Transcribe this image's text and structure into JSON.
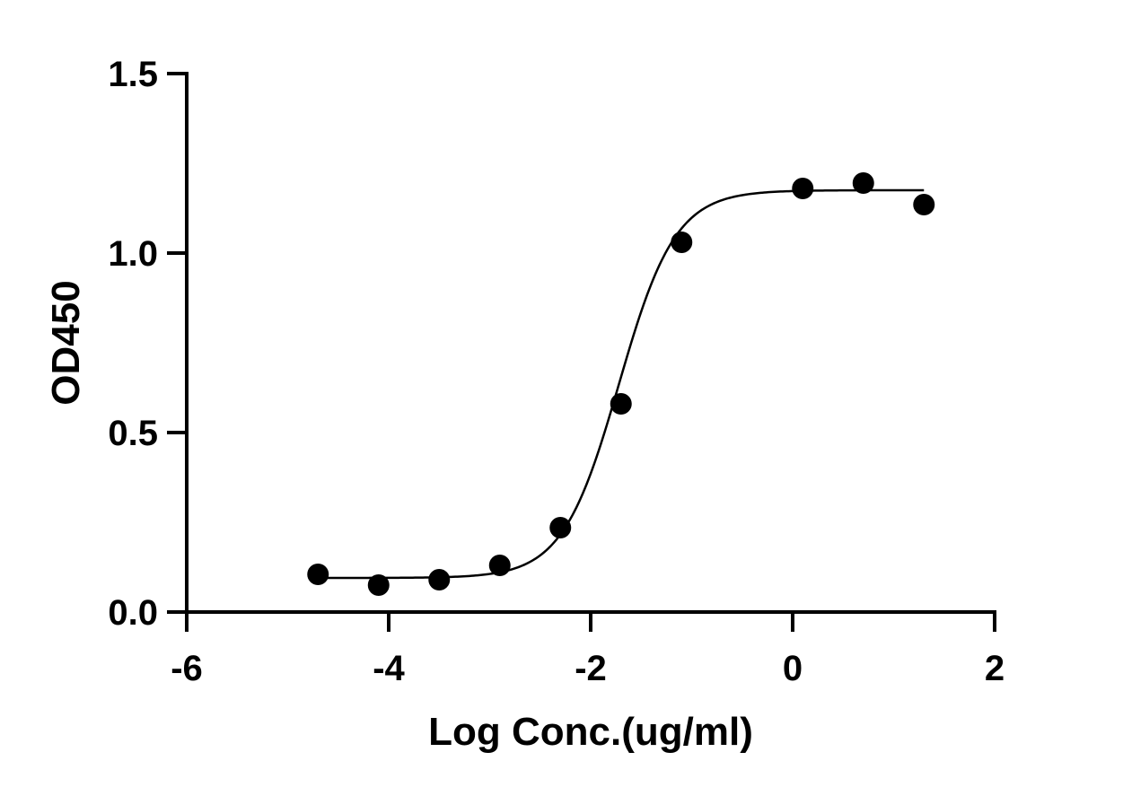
{
  "chart_data": {
    "type": "scatter",
    "title": "",
    "xlabel": "Log Conc.(ug/ml)",
    "ylabel": "OD450",
    "xlim": [
      -6,
      2
    ],
    "ylim": [
      0,
      1.5
    ],
    "x_ticks": [
      -6,
      -4,
      -2,
      0,
      2
    ],
    "x_tick_labels": [
      "-6",
      "-4",
      "-2",
      "0",
      "2"
    ],
    "y_ticks": [
      0,
      0.5,
      1,
      1.5
    ],
    "y_tick_labels": [
      "0.0",
      "0.5",
      "1.0",
      "1.5"
    ],
    "grid": false,
    "legend": "none",
    "series": [
      {
        "x": [
          -4.7,
          -4.1,
          -3.5,
          -2.9,
          -2.3,
          -1.7,
          -1.1,
          0.1,
          0.7,
          1.3
        ],
        "y": [
          0.105,
          0.075,
          0.09,
          0.13,
          0.235,
          0.58,
          1.03,
          1.18,
          1.195,
          1.135
        ],
        "marker": "filled-circle",
        "color": "#000000"
      }
    ],
    "fit_curve": {
      "model": "4PL sigmoid",
      "bottom": 0.095,
      "top": 1.175,
      "logEC50": -1.72,
      "hill": 1.55,
      "x_range": [
        -4.7,
        1.3
      ],
      "color": "#000000"
    }
  }
}
